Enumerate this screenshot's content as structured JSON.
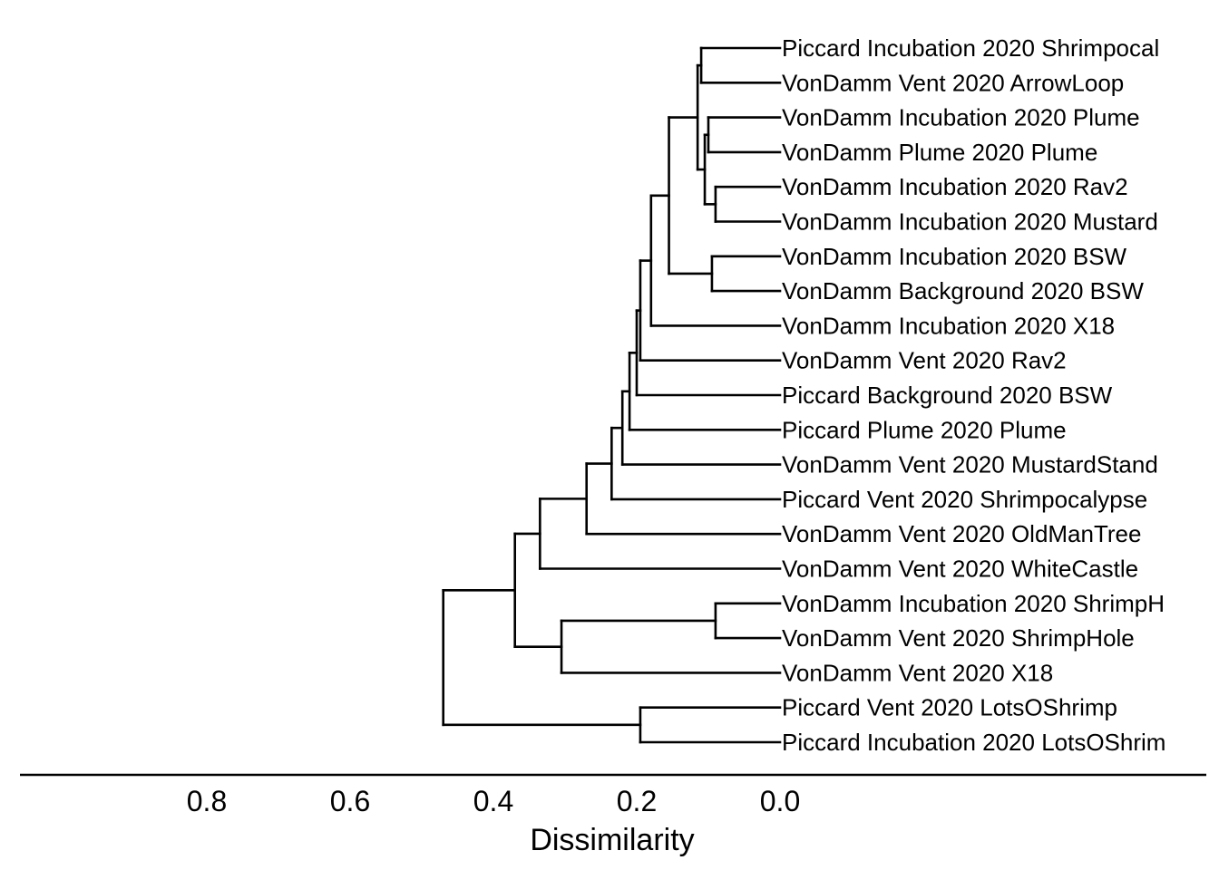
{
  "chart_data": {
    "type": "dendrogram",
    "orientation": "horizontal",
    "xlabel": "Dissimilarity",
    "xlim": [
      1.0,
      0.0
    ],
    "x_ticks": [
      "0.8",
      "0.6",
      "0.4",
      "0.2",
      "0.0"
    ],
    "x_tick_values": [
      0.8,
      0.6,
      0.4,
      0.2,
      0.0
    ],
    "leaves": [
      "Piccard Incubation 2020 Shrimpocal",
      "VonDamm Vent 2020 ArrowLoop",
      "VonDamm Incubation 2020 Plume",
      "VonDamm Plume 2020 Plume",
      "VonDamm Incubation 2020 Rav2",
      "VonDamm Incubation 2020 Mustard",
      "VonDamm Incubation 2020 BSW",
      "VonDamm Background 2020 BSW",
      "VonDamm Incubation 2020 X18",
      "VonDamm Vent 2020 Rav2",
      "Piccard Background 2020 BSW",
      "Piccard Plume 2020 Plume",
      "VonDamm Vent 2020 MustardStand",
      "Piccard Vent 2020 Shrimpocalypse",
      "VonDamm Vent 2020 OldManTree",
      "VonDamm Vent 2020 WhiteCastle",
      "VonDamm Incubation 2020 ShrimpH",
      "VonDamm Vent 2020 ShrimpHole",
      "VonDamm Vent 2020 X18",
      "Piccard Vent 2020 LotsOShrimp",
      "Piccard Incubation 2020 LotsOShrim"
    ],
    "merges": [
      {
        "children": [
          "L0",
          "L1"
        ],
        "height": 0.11
      },
      {
        "children": [
          "L2",
          "L3"
        ],
        "height": 0.1
      },
      {
        "children": [
          "L4",
          "L5"
        ],
        "height": 0.09
      },
      {
        "children": [
          "N1",
          "N2"
        ],
        "height": 0.105
      },
      {
        "children": [
          "N0",
          "N3"
        ],
        "height": 0.115
      },
      {
        "children": [
          "L6",
          "L7"
        ],
        "height": 0.095
      },
      {
        "children": [
          "N4",
          "N5"
        ],
        "height": 0.155
      },
      {
        "children": [
          "N6",
          "L8"
        ],
        "height": 0.18
      },
      {
        "children": [
          "N7",
          "L9"
        ],
        "height": 0.195
      },
      {
        "children": [
          "N8",
          "L10"
        ],
        "height": 0.2
      },
      {
        "children": [
          "N9",
          "L11"
        ],
        "height": 0.21
      },
      {
        "children": [
          "N10",
          "L12"
        ],
        "height": 0.22
      },
      {
        "children": [
          "N11",
          "L13"
        ],
        "height": 0.235
      },
      {
        "children": [
          "N12",
          "L14"
        ],
        "height": 0.27
      },
      {
        "children": [
          "N13",
          "L15"
        ],
        "height": 0.335
      },
      {
        "children": [
          "L16",
          "L17"
        ],
        "height": 0.09
      },
      {
        "children": [
          "N15",
          "L18"
        ],
        "height": 0.305
      },
      {
        "children": [
          "N14",
          "N16"
        ],
        "height": 0.37
      },
      {
        "children": [
          "L19",
          "L20"
        ],
        "height": 0.195
      },
      {
        "children": [
          "N17",
          "N18"
        ],
        "height": 0.47
      }
    ]
  }
}
